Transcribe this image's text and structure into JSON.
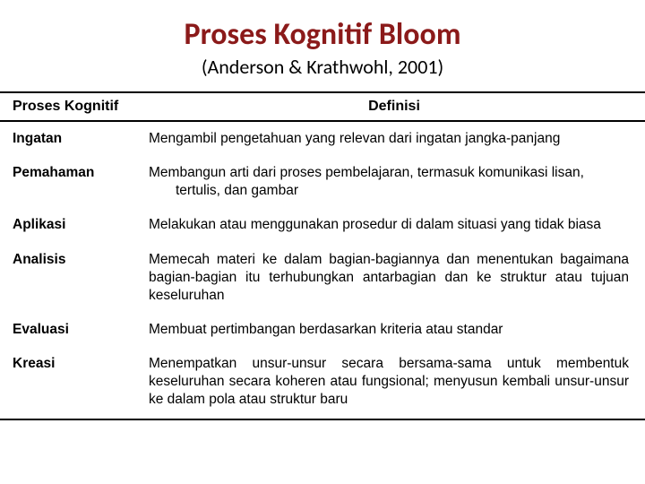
{
  "title": "Proses Kognitif Bloom",
  "subtitle": "(Anderson & Krathwohl, 2001)",
  "columns": [
    "Proses Kognitif",
    "Definisi"
  ],
  "rows": [
    {
      "proc": "Ingatan",
      "def": "Mengambil pengetahuan yang relevan dari ingatan jangka-panjang",
      "hang": true,
      "just": false
    },
    {
      "proc": "Pemahaman",
      "def": "Membangun arti dari proses pembelajaran, termasuk komunikasi lisan, tertulis, dan gambar",
      "hang": true,
      "just": false
    },
    {
      "proc": "Aplikasi",
      "def": "Melakukan atau menggunakan prosedur di dalam situasi yang tidak biasa",
      "hang": false,
      "just": false
    },
    {
      "proc": "Analisis",
      "def": "Memecah materi ke dalam bagian-bagiannya dan menentukan bagaimana bagian-bagian itu terhubungkan antarbagian dan ke struktur atau tujuan keseluruhan",
      "hang": false,
      "just": true
    },
    {
      "proc": "Evaluasi",
      "def": "Membuat pertimbangan berdasarkan kriteria atau standar",
      "hang": false,
      "just": false
    },
    {
      "proc": "Kreasi",
      "def": "Menempatkan unsur-unsur secara bersama-sama untuk membentuk keseluruhan secara koheren atau fungsional; menyusun kembali unsur-unsur ke dalam pola atau struktur baru",
      "hang": false,
      "just": true
    }
  ],
  "colors": {
    "title": "#8b1a1a",
    "text": "#000000",
    "rule": "#000000",
    "background": "#ffffff"
  }
}
